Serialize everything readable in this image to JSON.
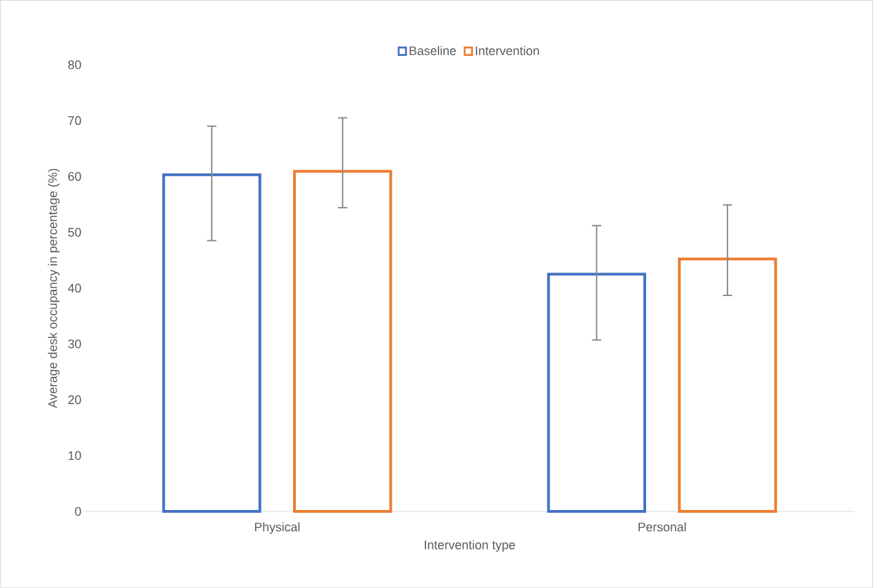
{
  "chart_data": {
    "type": "bar",
    "xlabel": "Intervention type",
    "ylabel": "Average desk occupancy in percentage (%)",
    "categories": [
      "Physical",
      "Personal"
    ],
    "series": [
      {
        "name": "Baseline",
        "color": "#4472c4",
        "values": [
          60.3,
          42.5
        ],
        "errors": [
          [
            48.5,
            69.0
          ],
          [
            30.7,
            51.2
          ]
        ]
      },
      {
        "name": "Intervention",
        "color": "#ed7d31",
        "values": [
          60.9,
          45.2
        ],
        "errors": [
          [
            54.4,
            70.5
          ],
          [
            38.7,
            54.9
          ]
        ]
      }
    ],
    "ylim": [
      0,
      80
    ],
    "yticks": [
      0,
      10,
      20,
      30,
      40,
      50,
      60,
      70,
      80
    ],
    "grid": false,
    "legend": "top"
  }
}
